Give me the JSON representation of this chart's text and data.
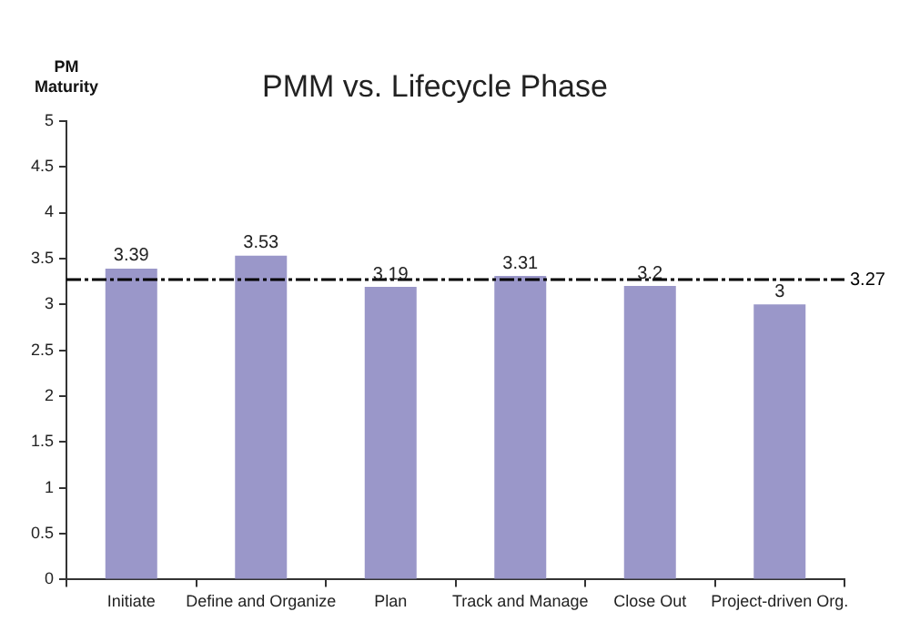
{
  "chart_data": {
    "type": "bar",
    "title": "PMM vs. Lifecycle Phase",
    "ylabel": "PM\nMaturity",
    "categories": [
      "Initiate",
      "Define and Organize",
      "Plan",
      "Track and Manage",
      "Close Out",
      "Project-driven Org."
    ],
    "values": [
      3.39,
      3.53,
      3.19,
      3.31,
      3.2,
      3
    ],
    "color": "#9a97c9",
    "ylim": [
      0,
      5
    ],
    "yticks": [
      0,
      0.5,
      1,
      1.5,
      2,
      2.5,
      3,
      3.5,
      4,
      4.5,
      5
    ],
    "ref_lines": [
      {
        "axis": "y",
        "value": 3.27,
        "label": "3.27",
        "color": "#000000",
        "line_style": "dashed"
      }
    ],
    "data_labels": true,
    "grid": false,
    "legend": false
  }
}
